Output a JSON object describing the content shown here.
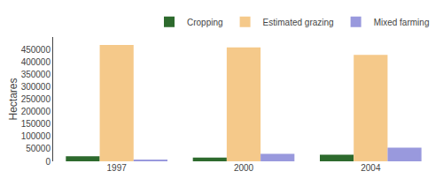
{
  "chart_data": {
    "type": "bar",
    "categories": [
      "1997",
      "2000",
      "2004"
    ],
    "series": [
      {
        "name": "Cropping",
        "color": "#2d6a2d",
        "values": [
          20000,
          15000,
          27000
        ]
      },
      {
        "name": "Estimated grazing",
        "color": "#f5c98a",
        "values": [
          468000,
          458000,
          428000
        ]
      },
      {
        "name": "Mixed farming",
        "color": "#9999dd",
        "values": [
          4000,
          30000,
          55000
        ]
      }
    ],
    "ylabel": "Hectares",
    "ylim": [
      0,
      500000
    ],
    "yticks": [
      0,
      50000,
      100000,
      150000,
      200000,
      250000,
      300000,
      350000,
      400000,
      450000
    ],
    "grid": false,
    "legend": "upper right"
  }
}
